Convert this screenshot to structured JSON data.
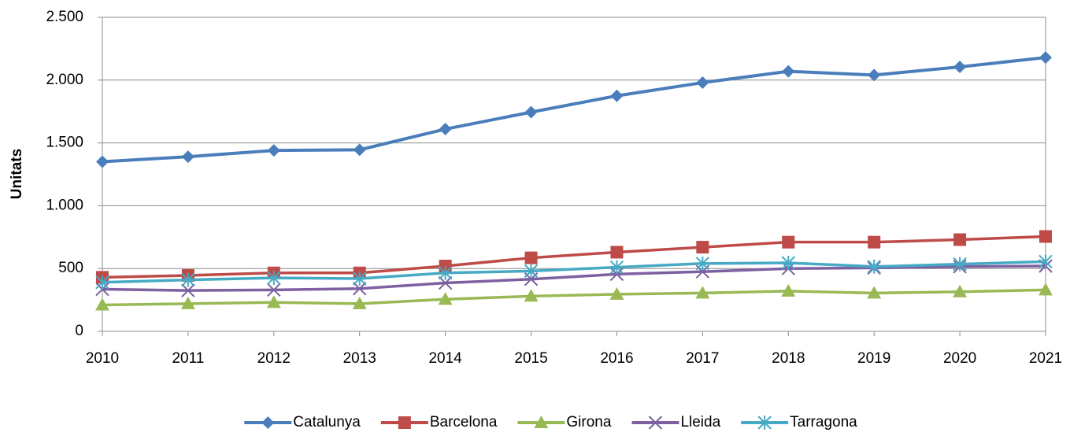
{
  "chart_data": {
    "type": "line",
    "y_label": "Unitats",
    "x": [
      2010,
      2011,
      2012,
      2013,
      2014,
      2015,
      2016,
      2017,
      2018,
      2019,
      2020,
      2021
    ],
    "xlim": [
      2010,
      2021
    ],
    "xticks": [
      2010,
      2011,
      2012,
      2013,
      2014,
      2015,
      2016,
      2017,
      2018,
      2019,
      2020,
      2021
    ],
    "ylim": [
      0,
      2500
    ],
    "yticks": [
      0,
      500,
      {
        "value": 1000,
        "label": "1.000"
      },
      {
        "value": 1500,
        "label": "1.500"
      },
      {
        "value": 2000,
        "label": "2.000"
      },
      {
        "value": 2500,
        "label": "2.500"
      }
    ],
    "grid": true,
    "legend": "bottom",
    "series": [
      {
        "name": "Catalunya",
        "color": "#4a7ebb",
        "marker": "diamond",
        "values": [
          1350,
          1390,
          1440,
          1445,
          1610,
          1745,
          1875,
          1980,
          2070,
          2040,
          2105,
          2180
        ]
      },
      {
        "name": "Barcelona",
        "color": "#be4b48",
        "marker": "square",
        "values": [
          430,
          445,
          465,
          465,
          520,
          585,
          630,
          670,
          710,
          710,
          730,
          755
        ]
      },
      {
        "name": "Girona",
        "color": "#98b954",
        "marker": "triangle",
        "values": [
          210,
          220,
          230,
          220,
          255,
          280,
          295,
          305,
          320,
          305,
          315,
          330
        ]
      },
      {
        "name": "Lleida",
        "color": "#7d60a0",
        "marker": "x",
        "values": [
          335,
          325,
          330,
          340,
          385,
          415,
          455,
          475,
          500,
          505,
          515,
          520
        ]
      },
      {
        "name": "Tarragona",
        "color": "#46aac5",
        "marker": "star",
        "values": [
          390,
          410,
          425,
          420,
          465,
          480,
          510,
          540,
          545,
          515,
          535,
          555
        ]
      }
    ]
  }
}
